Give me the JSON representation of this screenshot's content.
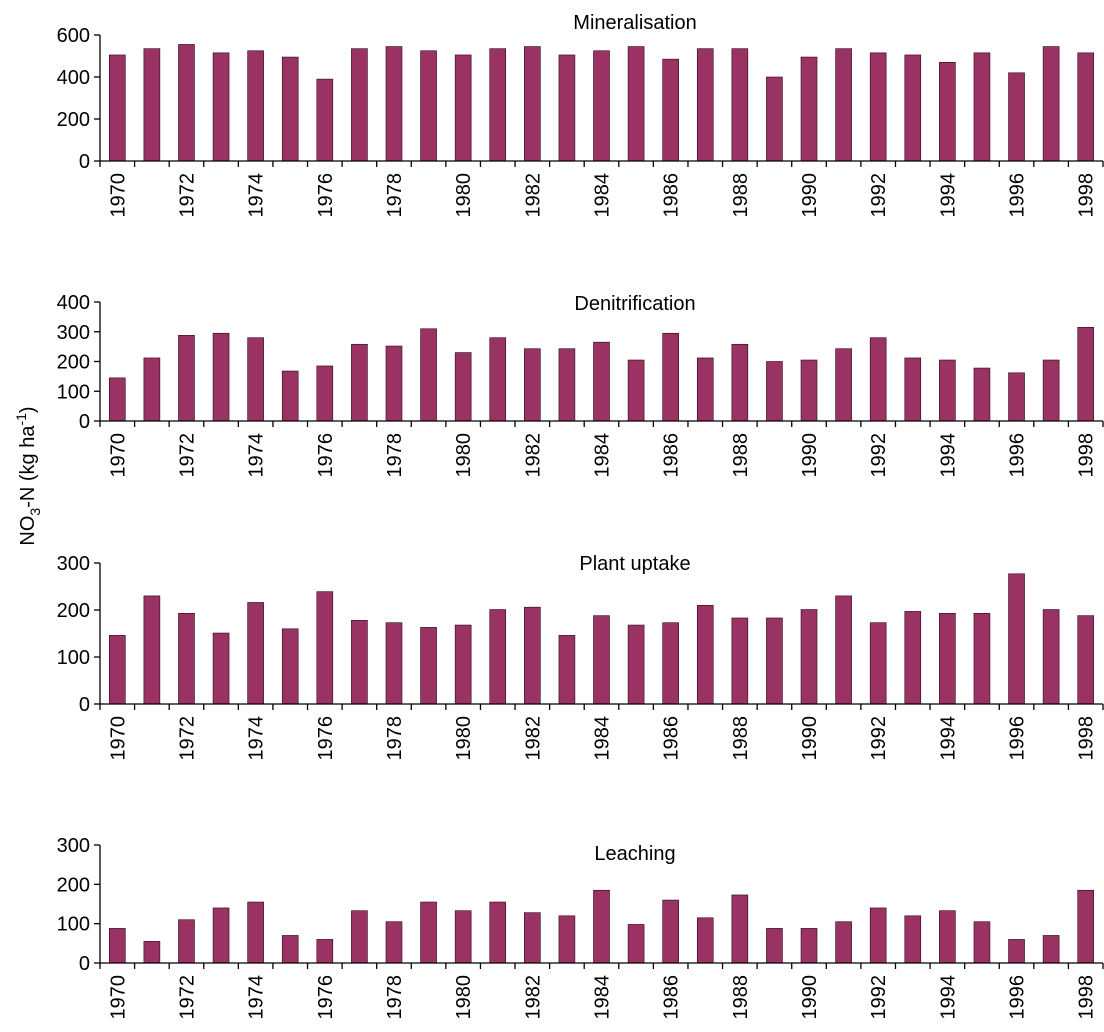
{
  "chart_data": {
    "ylabel": {
      "main": "NO",
      "sub": "3",
      "rest": "-N (kg ha",
      "sup": "-1",
      "close": ")"
    },
    "bar_color": "#9a3263",
    "panels": [
      {
        "type": "bar",
        "title": "Mineralisation",
        "ylim": [
          0,
          600
        ],
        "yticks": [
          0,
          200,
          400,
          600
        ],
        "categories": [
          "1970",
          "1971",
          "1972",
          "1973",
          "1974",
          "1975",
          "1976",
          "1977",
          "1978",
          "1979",
          "1980",
          "1981",
          "1982",
          "1983",
          "1984",
          "1985",
          "1986",
          "1987",
          "1988",
          "1989",
          "1990",
          "1991",
          "1992",
          "1993",
          "1994",
          "1995",
          "1996",
          "1997",
          "1998"
        ],
        "xtick_labels": [
          "1970",
          "1972",
          "1974",
          "1976",
          "1978",
          "1980",
          "1982",
          "1984",
          "1986",
          "1988",
          "1990",
          "1992",
          "1994",
          "1996",
          "1998"
        ],
        "values": [
          505,
          535,
          555,
          515,
          525,
          495,
          390,
          535,
          545,
          525,
          505,
          535,
          545,
          505,
          525,
          545,
          485,
          535,
          535,
          400,
          495,
          535,
          515,
          505,
          470,
          515,
          420,
          545,
          515
        ]
      },
      {
        "type": "bar",
        "title": "Denitrification",
        "ylim": [
          0,
          400
        ],
        "yticks": [
          0,
          100,
          200,
          300,
          400
        ],
        "categories": [
          "1970",
          "1971",
          "1972",
          "1973",
          "1974",
          "1975",
          "1976",
          "1977",
          "1978",
          "1979",
          "1980",
          "1981",
          "1982",
          "1983",
          "1984",
          "1985",
          "1986",
          "1987",
          "1988",
          "1989",
          "1990",
          "1991",
          "1992",
          "1993",
          "1994",
          "1995",
          "1996",
          "1997",
          "1998"
        ],
        "xtick_labels": [
          "1970",
          "1972",
          "1974",
          "1976",
          "1978",
          "1980",
          "1982",
          "1984",
          "1986",
          "1988",
          "1990",
          "1992",
          "1994",
          "1996",
          "1998"
        ],
        "values": [
          145,
          212,
          288,
          295,
          280,
          168,
          185,
          258,
          252,
          310,
          230,
          280,
          243,
          243,
          265,
          205,
          295,
          212,
          258,
          200,
          205,
          243,
          280,
          212,
          205,
          178,
          162,
          205,
          315
        ]
      },
      {
        "type": "bar",
        "title": "Plant uptake",
        "ylim": [
          0,
          300
        ],
        "yticks": [
          0,
          100,
          200,
          300
        ],
        "categories": [
          "1970",
          "1971",
          "1972",
          "1973",
          "1974",
          "1975",
          "1976",
          "1977",
          "1978",
          "1979",
          "1980",
          "1981",
          "1982",
          "1983",
          "1984",
          "1985",
          "1986",
          "1987",
          "1988",
          "1989",
          "1990",
          "1991",
          "1992",
          "1993",
          "1994",
          "1995",
          "1996",
          "1997",
          "1998"
        ],
        "xtick_labels": [
          "1970",
          "1972",
          "1974",
          "1976",
          "1978",
          "1980",
          "1982",
          "1984",
          "1986",
          "1988",
          "1990",
          "1992",
          "1994",
          "1996",
          "1998"
        ],
        "values": [
          146,
          230,
          193,
          151,
          216,
          160,
          239,
          178,
          173,
          163,
          168,
          201,
          206,
          146,
          188,
          168,
          173,
          210,
          183,
          183,
          201,
          230,
          173,
          197,
          193,
          193,
          277,
          201,
          188
        ]
      },
      {
        "type": "bar",
        "title": "Leaching",
        "ylim": [
          0,
          300
        ],
        "yticks": [
          0,
          100,
          200,
          300
        ],
        "categories": [
          "1970",
          "1971",
          "1972",
          "1973",
          "1974",
          "1975",
          "1976",
          "1977",
          "1978",
          "1979",
          "1980",
          "1981",
          "1982",
          "1983",
          "1984",
          "1985",
          "1986",
          "1987",
          "1988",
          "1989",
          "1990",
          "1991",
          "1992",
          "1993",
          "1994",
          "1995",
          "1996",
          "1997",
          "1998"
        ],
        "xtick_labels": [
          "1970",
          "1972",
          "1974",
          "1976",
          "1978",
          "1980",
          "1982",
          "1984",
          "1986",
          "1988",
          "1990",
          "1992",
          "1994",
          "1996",
          "1998"
        ],
        "values": [
          88,
          55,
          110,
          140,
          155,
          70,
          60,
          133,
          105,
          155,
          133,
          155,
          128,
          120,
          185,
          98,
          160,
          115,
          173,
          88,
          88,
          105,
          140,
          120,
          133,
          105,
          60,
          70,
          185
        ]
      }
    ]
  }
}
